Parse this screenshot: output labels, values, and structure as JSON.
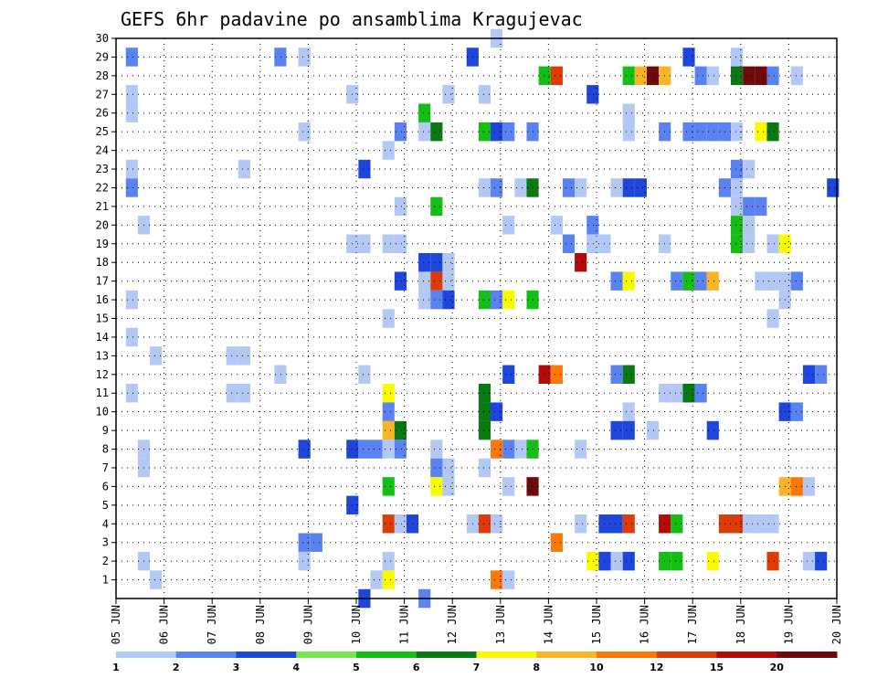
{
  "chart_data": {
    "type": "heatmap",
    "title": "GEFS 6hr padavine po ansamblima Kragujevac",
    "xlabel": "",
    "ylabel": "",
    "x_tick_labels": [
      "05 JUN",
      "06 JUN",
      "07 JUN",
      "08 JUN",
      "09 JUN",
      "10 JUN",
      "11 JUN",
      "12 JUN",
      "13 JUN",
      "14 JUN",
      "15 JUN",
      "16 JUN",
      "17 JUN",
      "18 JUN",
      "19 JUN",
      "20 JUN"
    ],
    "x_range_days": [
      0,
      15
    ],
    "y_tick_labels": [
      "1",
      "2",
      "3",
      "4",
      "5",
      "6",
      "7",
      "8",
      "9",
      "10",
      "11",
      "12",
      "13",
      "14",
      "15",
      "16",
      "17",
      "18",
      "19",
      "20",
      "21",
      "22",
      "23",
      "24",
      "25",
      "26",
      "27",
      "28",
      "29",
      "30"
    ],
    "y_range": [
      0,
      30
    ],
    "grid": true,
    "legend_placement": "bottom",
    "legend": {
      "labels": [
        "1",
        "2",
        "3",
        "4",
        "5",
        "6",
        "7",
        "8",
        "10",
        "12",
        "15",
        "20"
      ],
      "colors": [
        "#b4c8f5",
        "#5a82f0",
        "#1e46dc",
        "#78e650",
        "#14be14",
        "#0a7814",
        "#fafa00",
        "#fab428",
        "#fa780a",
        "#dc3c0a",
        "#b40a0a",
        "#6e0a0a"
      ]
    },
    "cells": [
      [
        0.33,
        29,
        1
      ],
      [
        0.33,
        27,
        0
      ],
      [
        0.33,
        26,
        0
      ],
      [
        0.33,
        23,
        0
      ],
      [
        0.33,
        22,
        1
      ],
      [
        0.33,
        16,
        0
      ],
      [
        0.33,
        14,
        0
      ],
      [
        0.33,
        11,
        0
      ],
      [
        0.58,
        20,
        0
      ],
      [
        0.58,
        8,
        0
      ],
      [
        0.58,
        7,
        0
      ],
      [
        0.58,
        2,
        0
      ],
      [
        0.83,
        13,
        0
      ],
      [
        0.83,
        1,
        0
      ],
      [
        2.42,
        13,
        0
      ],
      [
        2.42,
        11,
        0
      ],
      [
        2.67,
        23,
        0
      ],
      [
        2.67,
        13,
        0
      ],
      [
        2.67,
        11,
        0
      ],
      [
        3.42,
        29,
        1
      ],
      [
        3.42,
        12,
        0
      ],
      [
        3.92,
        29,
        0
      ],
      [
        3.92,
        25,
        0
      ],
      [
        3.92,
        8,
        2
      ],
      [
        3.92,
        3,
        1
      ],
      [
        3.92,
        2,
        0
      ],
      [
        4.17,
        3,
        1
      ],
      [
        4.92,
        27,
        0
      ],
      [
        4.92,
        19,
        0
      ],
      [
        4.92,
        8,
        2
      ],
      [
        4.92,
        5,
        2
      ],
      [
        5.17,
        23,
        2
      ],
      [
        5.17,
        19,
        0
      ],
      [
        5.17,
        12,
        0
      ],
      [
        5.17,
        8,
        1
      ],
      [
        5.17,
        0,
        2
      ],
      [
        5.42,
        8,
        1
      ],
      [
        5.42,
        1,
        0
      ],
      [
        5.67,
        24,
        0
      ],
      [
        5.67,
        19,
        0
      ],
      [
        5.67,
        15,
        0
      ],
      [
        5.67,
        11,
        6
      ],
      [
        5.67,
        10,
        1
      ],
      [
        5.67,
        9,
        7
      ],
      [
        5.67,
        8,
        0
      ],
      [
        5.67,
        6,
        4
      ],
      [
        5.67,
        4,
        9
      ],
      [
        5.67,
        2,
        0
      ],
      [
        5.67,
        1,
        6
      ],
      [
        5.92,
        25,
        1
      ],
      [
        5.92,
        21,
        0
      ],
      [
        5.92,
        19,
        0
      ],
      [
        5.92,
        17,
        2
      ],
      [
        5.92,
        9,
        5
      ],
      [
        5.92,
        8,
        1
      ],
      [
        5.92,
        4,
        0
      ],
      [
        6.17,
        4,
        2
      ],
      [
        6.42,
        26,
        4
      ],
      [
        6.42,
        25,
        0
      ],
      [
        6.42,
        18,
        2
      ],
      [
        6.42,
        17,
        0
      ],
      [
        6.42,
        16,
        0
      ],
      [
        6.42,
        0,
        1
      ],
      [
        6.67,
        25,
        5
      ],
      [
        6.67,
        21,
        4
      ],
      [
        6.67,
        18,
        2
      ],
      [
        6.67,
        17,
        9
      ],
      [
        6.67,
        16,
        1
      ],
      [
        6.67,
        8,
        0
      ],
      [
        6.67,
        7,
        1
      ],
      [
        6.67,
        6,
        6
      ],
      [
        6.92,
        27,
        0
      ],
      [
        6.92,
        18,
        0
      ],
      [
        6.92,
        17,
        0
      ],
      [
        6.92,
        16,
        2
      ],
      [
        6.92,
        7,
        0
      ],
      [
        6.92,
        6,
        0
      ],
      [
        7.42,
        29,
        2
      ],
      [
        7.42,
        4,
        0
      ],
      [
        7.67,
        27,
        0
      ],
      [
        7.67,
        25,
        4
      ],
      [
        7.67,
        22,
        0
      ],
      [
        7.67,
        16,
        4
      ],
      [
        7.67,
        11,
        5
      ],
      [
        7.67,
        10,
        5
      ],
      [
        7.67,
        9,
        5
      ],
      [
        7.67,
        7,
        0
      ],
      [
        7.67,
        4,
        9
      ],
      [
        7.92,
        30,
        0
      ],
      [
        7.92,
        25,
        2
      ],
      [
        7.92,
        22,
        1
      ],
      [
        7.92,
        16,
        1
      ],
      [
        7.92,
        10,
        2
      ],
      [
        7.92,
        8,
        8
      ],
      [
        7.92,
        4,
        0
      ],
      [
        7.92,
        1,
        8
      ],
      [
        8.17,
        25,
        1
      ],
      [
        8.17,
        20,
        0
      ],
      [
        8.17,
        16,
        6
      ],
      [
        8.17,
        12,
        2
      ],
      [
        8.17,
        8,
        1
      ],
      [
        8.17,
        6,
        0
      ],
      [
        8.17,
        1,
        0
      ],
      [
        8.42,
        22,
        0
      ],
      [
        8.42,
        8,
        0
      ],
      [
        8.67,
        25,
        1
      ],
      [
        8.67,
        22,
        5
      ],
      [
        8.67,
        16,
        4
      ],
      [
        8.67,
        8,
        4
      ],
      [
        8.67,
        6,
        11
      ],
      [
        8.92,
        28,
        4
      ],
      [
        8.92,
        12,
        10
      ],
      [
        9.17,
        28,
        9
      ],
      [
        9.17,
        20,
        0
      ],
      [
        9.17,
        12,
        8
      ],
      [
        9.17,
        3,
        8
      ],
      [
        9.42,
        22,
        1
      ],
      [
        9.42,
        19,
        1
      ],
      [
        9.67,
        22,
        0
      ],
      [
        9.67,
        18,
        10
      ],
      [
        9.67,
        8,
        0
      ],
      [
        9.67,
        4,
        0
      ],
      [
        9.92,
        27,
        2
      ],
      [
        9.92,
        20,
        1
      ],
      [
        9.92,
        19,
        0
      ],
      [
        9.92,
        2,
        6
      ],
      [
        10.17,
        19,
        0
      ],
      [
        10.17,
        4,
        2
      ],
      [
        10.17,
        2,
        2
      ],
      [
        10.42,
        22,
        0
      ],
      [
        10.42,
        17,
        1
      ],
      [
        10.42,
        12,
        1
      ],
      [
        10.42,
        9,
        2
      ],
      [
        10.42,
        4,
        2
      ],
      [
        10.42,
        2,
        0
      ],
      [
        10.67,
        28,
        4
      ],
      [
        10.67,
        26,
        0
      ],
      [
        10.67,
        25,
        0
      ],
      [
        10.67,
        22,
        2
      ],
      [
        10.67,
        17,
        6
      ],
      [
        10.67,
        12,
        5
      ],
      [
        10.67,
        10,
        0
      ],
      [
        10.67,
        9,
        2
      ],
      [
        10.67,
        4,
        9
      ],
      [
        10.67,
        2,
        2
      ],
      [
        10.92,
        22,
        2
      ],
      [
        10.92,
        28,
        7
      ],
      [
        11.17,
        28,
        11
      ],
      [
        11.17,
        9,
        0
      ],
      [
        11.42,
        28,
        7
      ],
      [
        11.42,
        25,
        1
      ],
      [
        11.42,
        19,
        0
      ],
      [
        11.42,
        11,
        0
      ],
      [
        11.42,
        4,
        10
      ],
      [
        11.42,
        2,
        4
      ],
      [
        11.67,
        11,
        0
      ],
      [
        11.67,
        4,
        4
      ],
      [
        11.67,
        2,
        4
      ],
      [
        11.67,
        17,
        1
      ],
      [
        11.92,
        29,
        2
      ],
      [
        11.92,
        25,
        1
      ],
      [
        11.92,
        17,
        4
      ],
      [
        11.92,
        11,
        5
      ],
      [
        12.17,
        28,
        1
      ],
      [
        12.17,
        25,
        1
      ],
      [
        12.17,
        17,
        1
      ],
      [
        12.17,
        11,
        1
      ],
      [
        12.42,
        28,
        0
      ],
      [
        12.42,
        25,
        1
      ],
      [
        12.42,
        17,
        7
      ],
      [
        12.42,
        9,
        2
      ],
      [
        12.42,
        2,
        6
      ],
      [
        12.67,
        22,
        1
      ],
      [
        12.67,
        25,
        1
      ],
      [
        12.67,
        4,
        9
      ],
      [
        12.92,
        29,
        0
      ],
      [
        12.92,
        28,
        5
      ],
      [
        12.92,
        25,
        0
      ],
      [
        12.92,
        23,
        1
      ],
      [
        12.92,
        22,
        0
      ],
      [
        12.92,
        21,
        0
      ],
      [
        12.92,
        20,
        4
      ],
      [
        12.92,
        19,
        4
      ],
      [
        12.92,
        4,
        9
      ],
      [
        13.17,
        28,
        11
      ],
      [
        13.17,
        23,
        0
      ],
      [
        13.17,
        21,
        1
      ],
      [
        13.17,
        20,
        0
      ],
      [
        13.17,
        19,
        0
      ],
      [
        13.17,
        4,
        0
      ],
      [
        13.42,
        28,
        11
      ],
      [
        13.42,
        25,
        6
      ],
      [
        13.42,
        21,
        1
      ],
      [
        13.42,
        17,
        0
      ],
      [
        13.42,
        4,
        0
      ],
      [
        13.67,
        28,
        1
      ],
      [
        13.67,
        25,
        5
      ],
      [
        13.67,
        17,
        0
      ],
      [
        13.67,
        15,
        0
      ],
      [
        13.67,
        4,
        0
      ],
      [
        13.67,
        2,
        9
      ],
      [
        13.67,
        19,
        0
      ],
      [
        13.92,
        19,
        6
      ],
      [
        13.92,
        17,
        0
      ],
      [
        13.92,
        16,
        0
      ],
      [
        13.92,
        10,
        2
      ],
      [
        13.92,
        6,
        7
      ],
      [
        14.17,
        28,
        0
      ],
      [
        14.17,
        17,
        1
      ],
      [
        14.17,
        10,
        1
      ],
      [
        14.17,
        6,
        8
      ],
      [
        14.42,
        12,
        2
      ],
      [
        14.42,
        6,
        0
      ],
      [
        14.42,
        2,
        0
      ],
      [
        14.67,
        12,
        1
      ],
      [
        14.67,
        2,
        2
      ],
      [
        14.92,
        22,
        2
      ]
    ]
  }
}
